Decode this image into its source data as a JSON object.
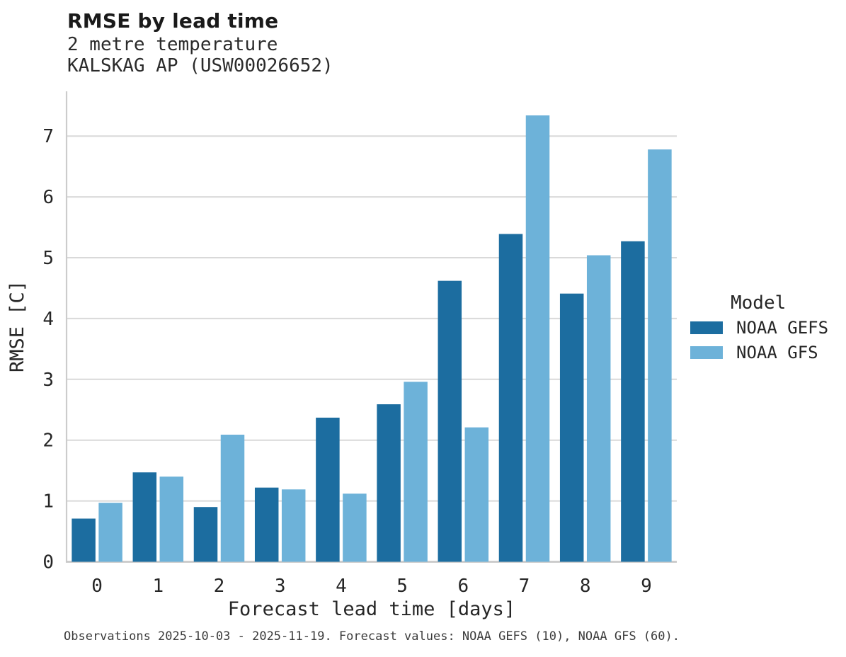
{
  "header": {
    "title": "RMSE by lead time",
    "subtitle_lines": [
      "2 metre temperature",
      "KALSKAG AP (USW00026652)"
    ]
  },
  "legend": {
    "title": "Model",
    "items": [
      {
        "label": "NOAA GEFS"
      },
      {
        "label": "NOAA GFS"
      }
    ]
  },
  "footnote": "Observations 2025-10-03 - 2025-11-19. Forecast values: NOAA GEFS (10), NOAA GFS (60).",
  "chart_data": {
    "type": "bar",
    "title": "RMSE by lead time",
    "subtitle": "2 metre temperature",
    "station": "KALSKAG AP (USW00026652)",
    "categories": [
      "0",
      "1",
      "2",
      "3",
      "4",
      "5",
      "6",
      "7",
      "8",
      "9"
    ],
    "series": [
      {
        "name": "NOAA GEFS",
        "color": "#1c6da0",
        "values": [
          0.71,
          1.47,
          0.9,
          1.22,
          2.37,
          2.59,
          4.62,
          5.39,
          4.41,
          5.27
        ]
      },
      {
        "name": "NOAA GFS",
        "color": "#6db2d9",
        "values": [
          0.97,
          1.4,
          2.09,
          1.19,
          1.12,
          2.96,
          2.21,
          7.34,
          5.04,
          6.78
        ]
      }
    ],
    "xlabel": "Forecast lead time [days]",
    "ylabel": "RMSE [C]",
    "ylim": [
      0,
      7.74
    ],
    "yticks": [
      0,
      1,
      2,
      3,
      4,
      5,
      6,
      7
    ],
    "grid": true,
    "grid_color": "#d9d9d9",
    "spine_color": "#cccccc",
    "tick_label_color": "#262626",
    "background": "#ffffff",
    "legend_title": "Model",
    "legend_position": "center right"
  }
}
